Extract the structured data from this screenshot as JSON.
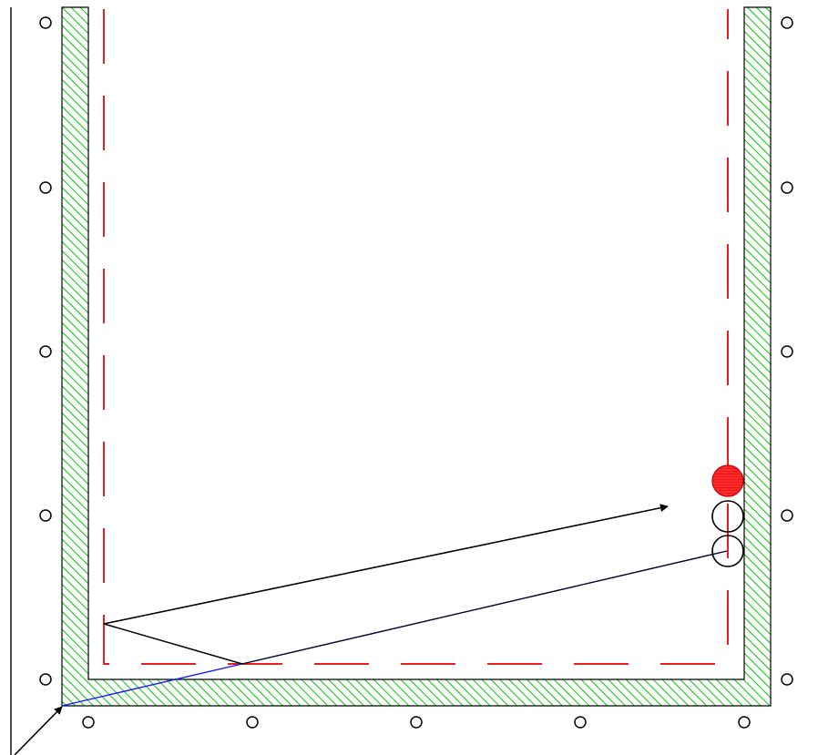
{
  "colors": {
    "background": "#ffffff",
    "wall_hatch": "#00cc00",
    "wall_outline": "#000000",
    "boundary_dash": "#ee1c1c",
    "ball_fill": "#ff2a2a",
    "ball_outline": "#cc0000",
    "trajectory": "#000000",
    "cue_line": "#1a1aff",
    "diamond_marker": "#000000"
  },
  "table": {
    "pockets_visible": false,
    "diamond_markers": {
      "left_rail_count": 5,
      "right_rail_count": 5,
      "bottom_rail_count": 5
    }
  },
  "balls": [
    {
      "id": "object-ball",
      "style": "filled-red"
    },
    {
      "id": "ghost-ball-1",
      "style": "outline"
    },
    {
      "id": "ghost-ball-2",
      "style": "outline"
    }
  ],
  "paths": [
    {
      "id": "cue-path",
      "style": "blue-line"
    },
    {
      "id": "rebound-path",
      "style": "black-line"
    },
    {
      "id": "aim-arrow",
      "style": "black-arrow"
    },
    {
      "id": "entry-arrow",
      "style": "black-arrow"
    }
  ]
}
